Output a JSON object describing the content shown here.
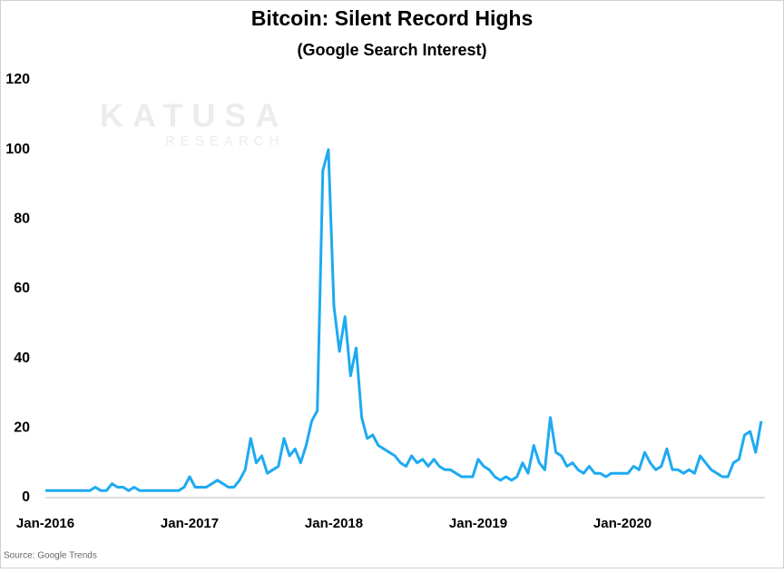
{
  "chart_data": {
    "type": "line",
    "title": "Bitcoin: Silent Record Highs",
    "subtitle": "(Google Search Interest)",
    "watermark": "KATUSA",
    "watermark_sub": "RESEARCH",
    "source": "Source: Google Trends",
    "categories": [
      "Jan-2016",
      null,
      null,
      null,
      null,
      null,
      null,
      null,
      null,
      null,
      null,
      null,
      null,
      null,
      null,
      null,
      null,
      null,
      null,
      null,
      null,
      null,
      null,
      null,
      null,
      null,
      "Jan-2017",
      null,
      null,
      null,
      null,
      null,
      null,
      null,
      null,
      null,
      null,
      null,
      null,
      null,
      null,
      null,
      null,
      null,
      null,
      null,
      null,
      null,
      null,
      null,
      null,
      null,
      "Jan-2018",
      null,
      null,
      null,
      null,
      null,
      null,
      null,
      null,
      null,
      null,
      null,
      null,
      null,
      null,
      null,
      null,
      null,
      null,
      null,
      null,
      null,
      null,
      null,
      null,
      null,
      "Jan-2019",
      null,
      null,
      null,
      null,
      null,
      null,
      null,
      null,
      null,
      null,
      null,
      null,
      null,
      null,
      null,
      null,
      null,
      null,
      null,
      null,
      null,
      null,
      null,
      null,
      null,
      "Jan-2020",
      null,
      null,
      null,
      null,
      null,
      null,
      null,
      null,
      null,
      null,
      null,
      null,
      null,
      null,
      null,
      null,
      null,
      null,
      null,
      null,
      null,
      null,
      null,
      null,
      null
    ],
    "series": [
      {
        "name": "Bitcoin",
        "color": "#1eaaf1",
        "values": [
          2,
          2,
          2,
          2,
          2,
          2,
          2,
          2,
          2,
          3,
          2,
          2,
          4,
          3,
          3,
          2,
          3,
          2,
          2,
          2,
          2,
          2,
          2,
          2,
          2,
          3,
          6,
          3,
          3,
          3,
          4,
          5,
          4,
          3,
          3,
          5,
          8,
          17,
          10,
          12,
          7,
          8,
          9,
          17,
          12,
          14,
          10,
          15,
          22,
          25,
          94,
          100,
          55,
          42,
          52,
          35,
          43,
          23,
          17,
          18,
          15,
          14,
          13,
          12,
          10,
          9,
          12,
          10,
          11,
          9,
          11,
          9,
          8,
          8,
          7,
          6,
          6,
          6,
          11,
          9,
          8,
          6,
          5,
          6,
          5,
          6,
          10,
          7,
          15,
          10,
          8,
          23,
          13,
          12,
          9,
          10,
          8,
          7,
          9,
          7,
          7,
          6,
          7,
          7,
          7,
          7,
          9,
          8,
          13,
          10,
          8,
          9,
          14,
          8,
          8,
          7,
          8,
          7,
          12,
          10,
          8,
          7,
          6,
          6,
          10,
          11,
          18,
          19,
          13,
          22
        ]
      }
    ],
    "ylim": [
      0,
      120
    ],
    "yticks": [
      0,
      20,
      40,
      60,
      80,
      100,
      120
    ],
    "grid": false
  }
}
